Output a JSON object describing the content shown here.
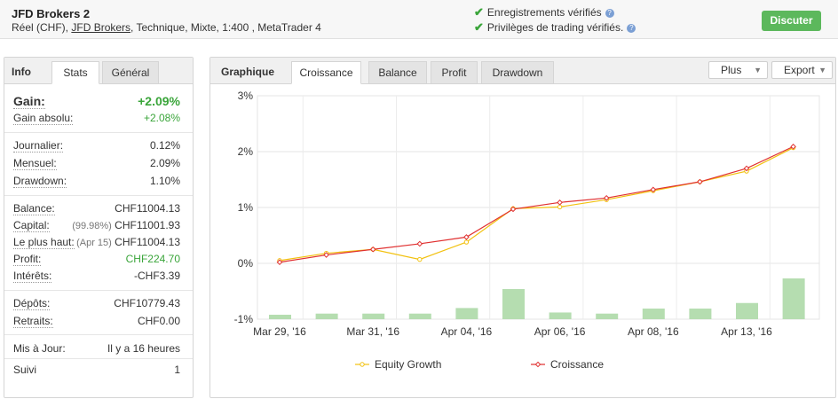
{
  "account": {
    "title": "JFD Brokers 2",
    "sub_prefix": "Réel (CHF),",
    "sub_link": "JFD Brokers",
    "sub_suffix": ", Technique, Mixte, 1:400 , MetaTrader 4"
  },
  "verifications": [
    {
      "icon": "checkmark-icon",
      "text": "Enregistrements vérifiés"
    },
    {
      "icon": "checkmark-icon",
      "text": "Privilèges de trading vérifiés."
    }
  ],
  "discuss_button": "Discuter",
  "left_tabs": {
    "header": "Info",
    "tabs": [
      "Stats",
      "Général"
    ]
  },
  "stats": {
    "gain": {
      "label": "Gain:",
      "value": "+2.09%"
    },
    "gain_abs": {
      "label": "Gain absolu:",
      "value": "+2.08%"
    },
    "daily": {
      "label": "Journalier:",
      "value": "0.12%"
    },
    "monthly": {
      "label": "Mensuel:",
      "value": "2.09%"
    },
    "drawdown": {
      "label": "Drawdown:",
      "value": "1.10%"
    },
    "balance": {
      "label": "Balance:",
      "value": "CHF11004.13"
    },
    "capital": {
      "label": "Capital:",
      "note": "(99.98%)",
      "value": "CHF11001.93"
    },
    "highest": {
      "label": "Le plus haut:",
      "note": "(Apr 15)",
      "value": "CHF11004.13"
    },
    "profit": {
      "label": "Profit:",
      "value": "CHF224.70"
    },
    "interest": {
      "label": "Intérêts:",
      "value": "-CHF3.39"
    },
    "deposits": {
      "label": "Dépôts:",
      "value": "CHF10779.43"
    },
    "withdrawals": {
      "label": "Retraits:",
      "value": "CHF0.00"
    },
    "updated": {
      "label": "Mis à Jour:",
      "value": "Il y a 16 heures"
    },
    "followed": {
      "label": "Suivi",
      "value": "1"
    }
  },
  "right_tabs": {
    "header": "Graphique",
    "tabs": [
      "Croissance",
      "Balance",
      "Profit",
      "Drawdown"
    ],
    "active": 0
  },
  "dropdowns": {
    "more": "Plus",
    "export": "Export"
  },
  "chart_data": {
    "type": "line",
    "x_tick_labels": [
      "Mar 29, '16",
      "Mar 31, '16",
      "Apr 04, '16",
      "Apr 06, '16",
      "Apr 08, '16",
      "Apr 13, '16"
    ],
    "y_tick_labels": [
      "3%",
      "2%",
      "1%",
      "0%",
      "-1%"
    ],
    "ylim": [
      -1,
      3
    ],
    "series": [
      {
        "name": "Equity Growth",
        "color": "#f2c10f",
        "values": [
          0.05,
          0.18,
          0.25,
          0.07,
          0.38,
          0.98,
          1.01,
          1.14,
          1.3,
          1.46,
          1.65,
          2.07
        ]
      },
      {
        "name": "Croissance",
        "color": "#e03030",
        "values": [
          0.02,
          0.15,
          0.25,
          0.35,
          0.47,
          0.97,
          1.09,
          1.17,
          1.32,
          1.46,
          1.7,
          2.09
        ]
      },
      {
        "name": "bars",
        "color": "#b5ddb0",
        "values": [
          -0.92,
          -0.9,
          -0.9,
          -0.9,
          -0.8,
          -0.46,
          -0.88,
          -0.9,
          -0.81,
          -0.81,
          -0.71,
          -0.27
        ]
      }
    ],
    "legend": [
      "Equity Growth",
      "Croissance"
    ],
    "legend_position": "bottom",
    "grid": true
  }
}
